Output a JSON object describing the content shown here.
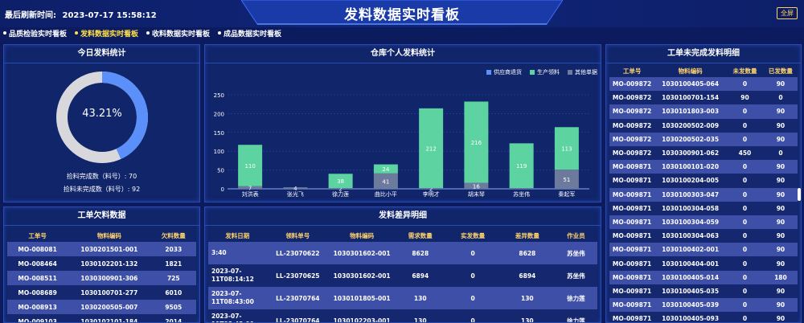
{
  "header": {
    "refresh_label": "最后刷新时间:",
    "refresh_time": "2023-07-17 15:58:12",
    "title": "发料数据实时看板",
    "fullscreen_label": "全屏"
  },
  "nav": [
    {
      "label": "品质检验实时看板",
      "active": false
    },
    {
      "label": "发料数据实时看板",
      "active": true
    },
    {
      "label": "收料数据实时看板",
      "active": false
    },
    {
      "label": "成品数据实时看板",
      "active": false
    }
  ],
  "colors": {
    "accent": "#5b8ff9",
    "donut_rest": "#d8d8dc",
    "series_supplier": "#5b8ff9",
    "series_production": "#5cd3a0",
    "series_other": "#6c7a9c",
    "header_yellow": "#ffd36b"
  },
  "today_stats": {
    "title": "今日发料统计",
    "percent_label": "43.21%",
    "completed_line": "捡料完成数（料号）: 70",
    "incomplete_line": "捡料未完成数（料号）: 92",
    "completed": 70,
    "incomplete": 92
  },
  "warehouse_chart": {
    "title": "仓库个人发料统计",
    "chart_data": {
      "type": "bar",
      "stacked": true,
      "categories": [
        "刘洪表",
        "张光飞",
        "徐力莲",
        "曲比小平",
        "李明才",
        "胡末琴",
        "苏坐伟",
        "秦起军"
      ],
      "series": [
        {
          "name": "供应商退货",
          "values": [
            0,
            0,
            0,
            0,
            0,
            0,
            0,
            0
          ]
        },
        {
          "name": "生产领料",
          "values": [
            110,
            0,
            38,
            24,
            212,
            216,
            119,
            113
          ]
        },
        {
          "name": "其他单据",
          "values": [
            7,
            4,
            2,
            41,
            2,
            16,
            2,
            51
          ]
        }
      ],
      "data_labels": {
        "生产领料": [
          "110",
          "",
          "38",
          "24",
          "212",
          "216",
          "119",
          "113"
        ],
        "其他单据": [
          "7",
          "4",
          "2",
          "41",
          "2",
          "16",
          "",
          "51"
        ]
      },
      "ylim": [
        0,
        250
      ],
      "yticks": [
        "0",
        "50",
        "100",
        "150",
        "200",
        "250"
      ],
      "legend_position": "top-right"
    }
  },
  "unfinished_detail": {
    "title": "工单未完成发料明细",
    "columns": [
      "工单号",
      "物料编码",
      "未发数量",
      "已发数量"
    ],
    "rows": [
      [
        "MO-009872",
        "1030100405-064",
        "0",
        "90"
      ],
      [
        "MO-009872",
        "1030100701-154",
        "90",
        "0"
      ],
      [
        "MO-009872",
        "1030101803-003",
        "0",
        "90"
      ],
      [
        "MO-009872",
        "1030200502-009",
        "0",
        "90"
      ],
      [
        "MO-009872",
        "1030200502-035",
        "0",
        "90"
      ],
      [
        "MO-009872",
        "1030300901-062",
        "450",
        "0"
      ],
      [
        "MO-009871",
        "1030100101-020",
        "0",
        "90"
      ],
      [
        "MO-009871",
        "1030100204-005",
        "0",
        "90"
      ],
      [
        "MO-009871",
        "1030100303-047",
        "0",
        "90"
      ],
      [
        "MO-009871",
        "1030100304-058",
        "0",
        "90"
      ],
      [
        "MO-009871",
        "1030100304-059",
        "0",
        "90"
      ],
      [
        "MO-009871",
        "1030100304-063",
        "0",
        "90"
      ],
      [
        "MO-009871",
        "1030100402-001",
        "0",
        "90"
      ],
      [
        "MO-009871",
        "1030100404-001",
        "0",
        "90"
      ],
      [
        "MO-009871",
        "1030100405-014",
        "0",
        "180"
      ],
      [
        "MO-009871",
        "1030100405-035",
        "0",
        "90"
      ],
      [
        "MO-009871",
        "1030100405-039",
        "0",
        "90"
      ],
      [
        "MO-009871",
        "1030100405-093",
        "0",
        "90"
      ]
    ]
  },
  "shortage": {
    "title": "工单欠料数据",
    "columns": [
      "工单号",
      "物料编码",
      "欠料数量"
    ],
    "rows": [
      [
        "MO-008081",
        "1030201501-001",
        "2033"
      ],
      [
        "MO-008464",
        "1030102201-132",
        "1821"
      ],
      [
        "MO-008511",
        "1030300901-306",
        "725"
      ],
      [
        "MO-008689",
        "1030100701-277",
        "6010"
      ],
      [
        "MO-008913",
        "1030200505-007",
        "9505"
      ],
      [
        "MO-009103",
        "1030102101-184",
        "2014"
      ]
    ]
  },
  "diff_detail": {
    "title": "发料差异明细",
    "columns": [
      "发料日期",
      "领料单号",
      "物料编码",
      "需求数量",
      "实发数量",
      "差异数量",
      "作业员"
    ],
    "rows": [
      [
        "3:40",
        "LL-23070622",
        "1030301602-001",
        "8628",
        "0",
        "8628",
        "苏坐伟"
      ],
      [
        "2023-07-11T08:14:12",
        "LL-23070625",
        "1030301602-001",
        "6894",
        "0",
        "6894",
        "苏坐伟"
      ],
      [
        "2023-07-11T08:43:00",
        "LL-23070764",
        "1030101805-001",
        "130",
        "0",
        "130",
        "徐力莲"
      ],
      [
        "2023-07-11T08:43:00",
        "LL-23070764",
        "1030102203-001",
        "130",
        "0",
        "130",
        "徐力莲"
      ]
    ]
  }
}
